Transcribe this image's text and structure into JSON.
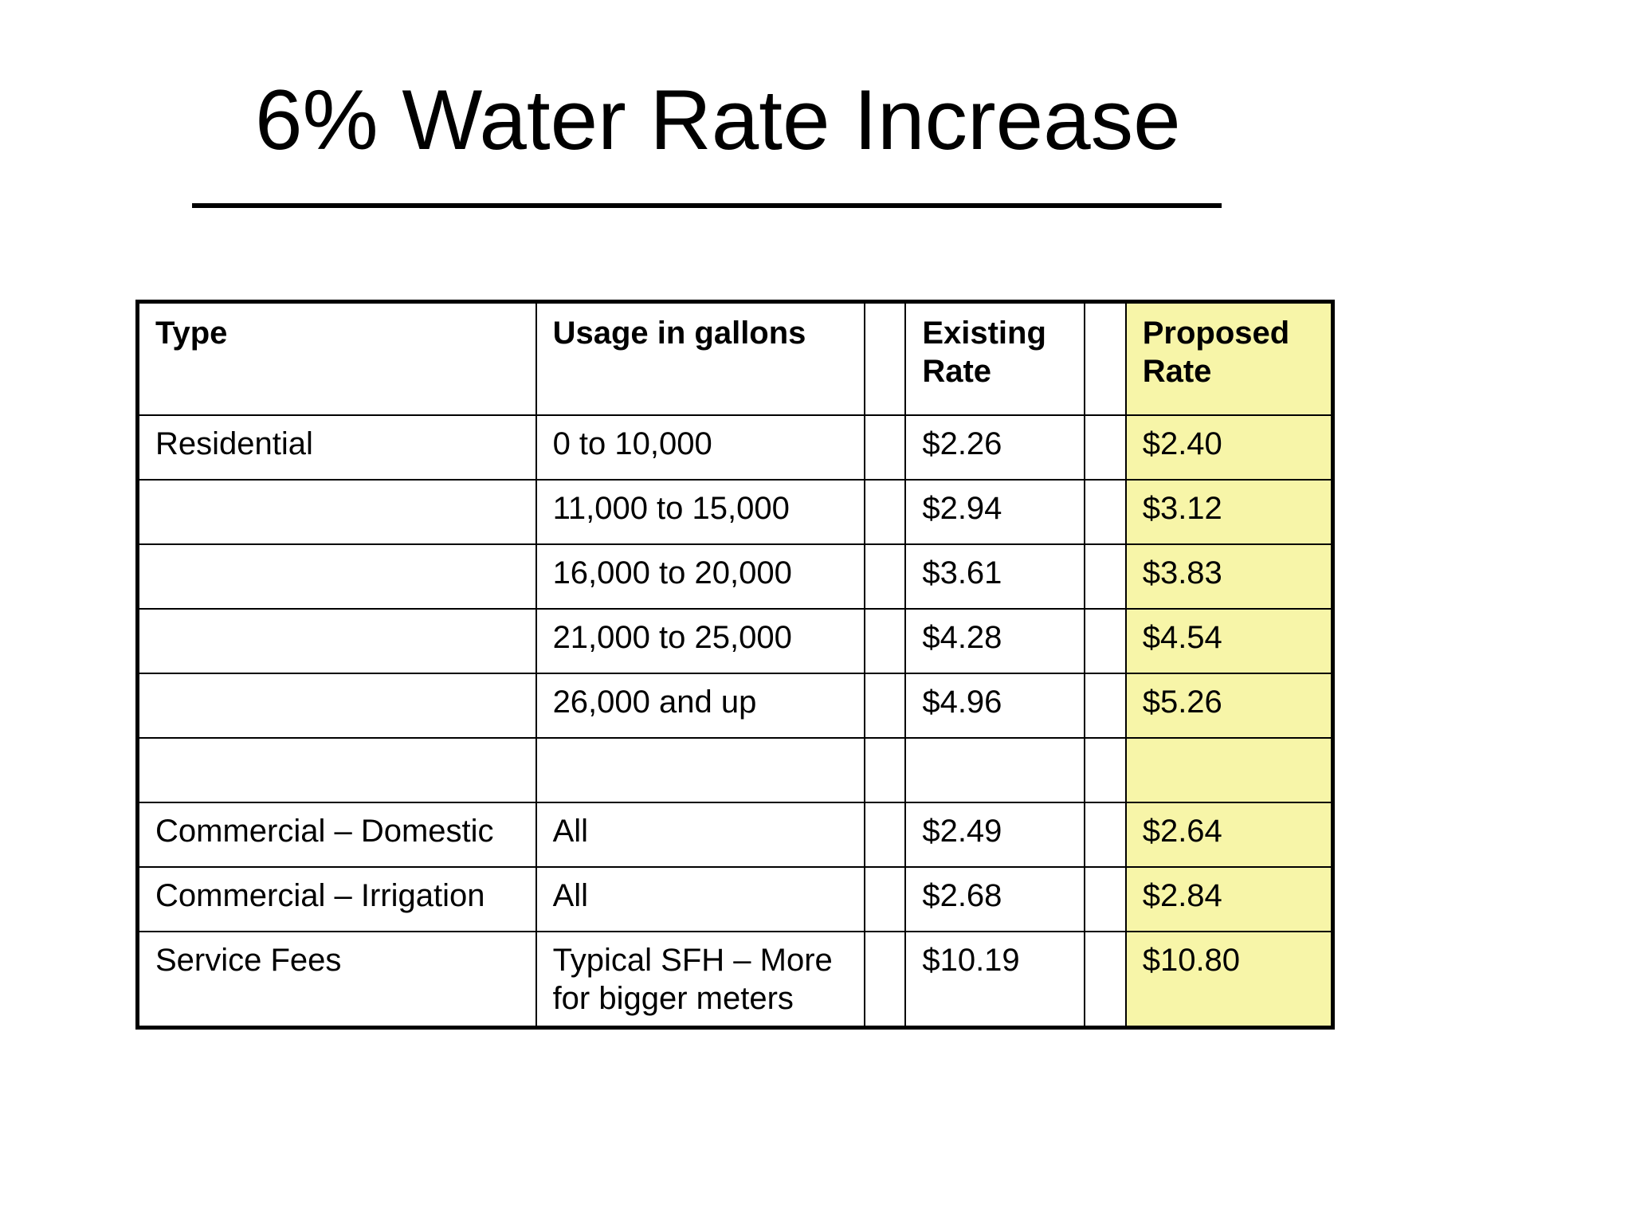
{
  "slide": {
    "title": "6% Water Rate Increase"
  },
  "table": {
    "headers": {
      "type": "Type",
      "usage": "Usage in gallons",
      "existing": "Existing Rate",
      "proposed": "Proposed Rate"
    },
    "rows": [
      {
        "type": "Residential",
        "usage": "0 to 10,000",
        "existing": "$2.26",
        "proposed": "$2.40"
      },
      {
        "type": "",
        "usage": "11,000 to 15,000",
        "existing": "$2.94",
        "proposed": "$3.12"
      },
      {
        "type": "",
        "usage": "16,000 to 20,000",
        "existing": "$3.61",
        "proposed": "$3.83"
      },
      {
        "type": "",
        "usage": "21,000 to 25,000",
        "existing": "$4.28",
        "proposed": "$4.54"
      },
      {
        "type": "",
        "usage": "26,000 and up",
        "existing": "$4.96",
        "proposed": "$5.26"
      },
      {
        "type": "",
        "usage": "",
        "existing": "",
        "proposed": ""
      },
      {
        "type": "Commercial – Domestic",
        "usage": "All",
        "existing": "$2.49",
        "proposed": "$2.64"
      },
      {
        "type": "Commercial – Irrigation",
        "usage": "All",
        "existing": "$2.68",
        "proposed": "$2.84"
      },
      {
        "type": "Service Fees",
        "usage": "Typical SFH – More for bigger meters",
        "existing": "$10.19",
        "proposed": "$10.80"
      }
    ]
  },
  "colors": {
    "proposed_highlight": "#f7f5a8",
    "text": "#000000",
    "background": "#ffffff"
  }
}
